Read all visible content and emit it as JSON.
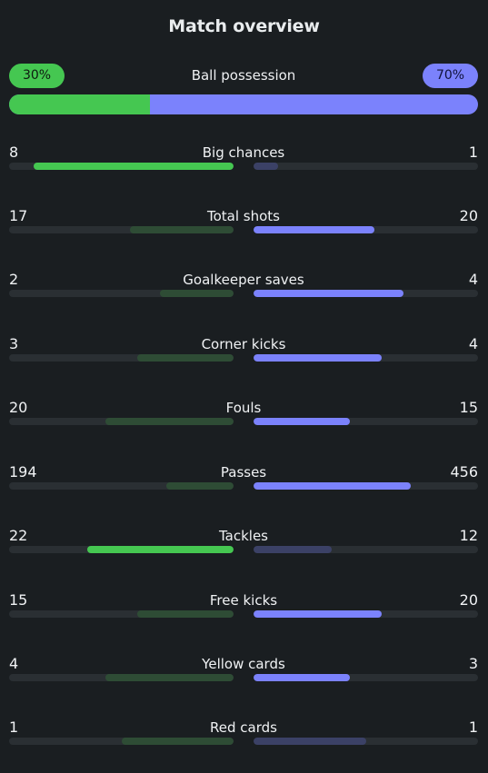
{
  "title": "Match overview",
  "possession": {
    "label": "Ball possession",
    "home": "30%",
    "away": "70%",
    "home_fraction": 0.3,
    "colors": {
      "home": "#45c751",
      "away": "#7b82fc"
    }
  },
  "stats": [
    {
      "label": "Big chances",
      "home": "8",
      "away": "1",
      "home_fill": 0.89,
      "away_fill": 0.11,
      "leader": "home"
    },
    {
      "label": "Total shots",
      "home": "17",
      "away": "20",
      "home_fill": 0.46,
      "away_fill": 0.54,
      "leader": "away"
    },
    {
      "label": "Goalkeeper saves",
      "home": "2",
      "away": "4",
      "home_fill": 0.33,
      "away_fill": 0.67,
      "leader": "away"
    },
    {
      "label": "Corner kicks",
      "home": "3",
      "away": "4",
      "home_fill": 0.43,
      "away_fill": 0.57,
      "leader": "away"
    },
    {
      "label": "Fouls",
      "home": "20",
      "away": "15",
      "home_fill": 0.57,
      "away_fill": 0.43,
      "leader": "away"
    },
    {
      "label": "Passes",
      "home": "194",
      "away": "456",
      "home_fill": 0.3,
      "away_fill": 0.7,
      "leader": "away"
    },
    {
      "label": "Tackles",
      "home": "22",
      "away": "12",
      "home_fill": 0.65,
      "away_fill": 0.35,
      "leader": "home"
    },
    {
      "label": "Free kicks",
      "home": "15",
      "away": "20",
      "home_fill": 0.43,
      "away_fill": 0.57,
      "leader": "away"
    },
    {
      "label": "Yellow cards",
      "home": "4",
      "away": "3",
      "home_fill": 0.57,
      "away_fill": 0.43,
      "leader": "away"
    },
    {
      "label": "Red cards",
      "home": "1",
      "away": "1",
      "home_fill": 0.5,
      "away_fill": 0.5,
      "leader": "none"
    }
  ]
}
